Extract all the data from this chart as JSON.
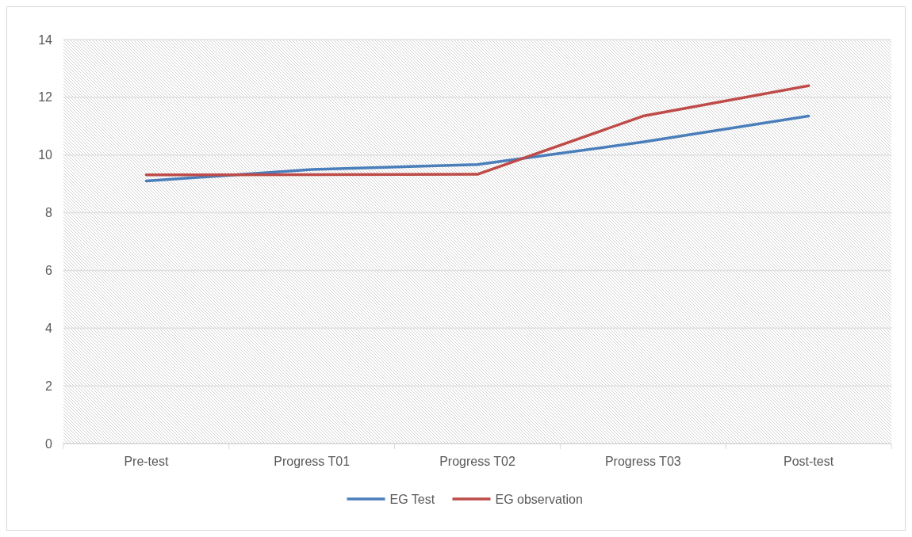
{
  "chart_data": {
    "type": "line",
    "categories": [
      "Pre-test",
      "Progress T01",
      "Progress T02",
      "Progress T03",
      "Post-test"
    ],
    "series": [
      {
        "name": "EG Test",
        "color": "#4a7ebb",
        "values": [
          9.1,
          9.5,
          9.67,
          10.45,
          11.35
        ]
      },
      {
        "name": "EG observation",
        "color": "#be4b48",
        "values": [
          9.31,
          9.32,
          9.33,
          11.35,
          12.4
        ]
      }
    ],
    "ylim": [
      0,
      14
    ],
    "yticks": [
      0,
      2,
      4,
      6,
      8,
      10,
      12,
      14
    ],
    "grid": "y",
    "legend": "bottom",
    "marker": "none",
    "line_style": "solid"
  }
}
